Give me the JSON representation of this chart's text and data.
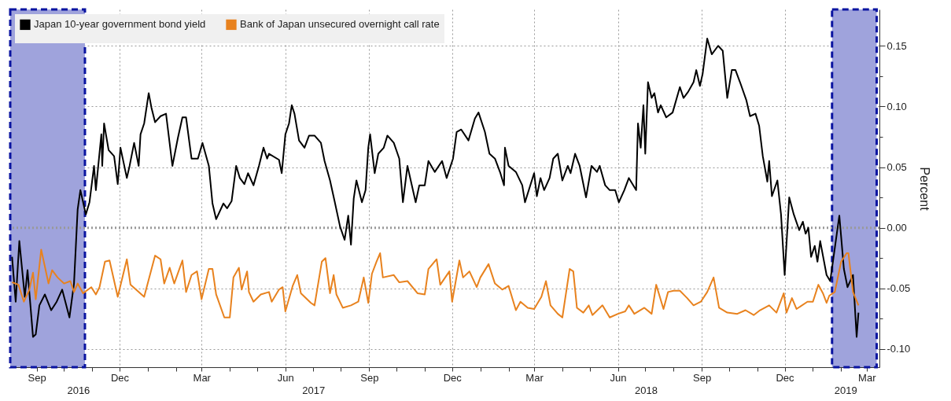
{
  "chart_data": {
    "type": "line",
    "ylabel": "Percent",
    "xlim": [
      "2016-08-03",
      "2019-03-15"
    ],
    "ylim": [
      -0.115,
      0.18
    ],
    "yticks": [
      {
        "value": -0.1,
        "label": "-0.10"
      },
      {
        "value": -0.075,
        "label": null
      },
      {
        "value": -0.05,
        "label": "-0.05"
      },
      {
        "value": -0.025,
        "label": null
      },
      {
        "value": 0,
        "label": "0.00"
      },
      {
        "value": 0.025,
        "label": null
      },
      {
        "value": 0.05,
        "label": "0.05"
      },
      {
        "value": 0.075,
        "label": null
      },
      {
        "value": 0.1,
        "label": "0.10"
      },
      {
        "value": 0.125,
        "label": null
      },
      {
        "value": 0.15,
        "label": "0.15"
      }
    ],
    "xticks": [
      {
        "value": "2016-09-01",
        "label": "Sep"
      },
      {
        "value": "2016-10-01",
        "label": null
      },
      {
        "value": "2016-11-01",
        "label": null
      },
      {
        "value": "2016-12-01",
        "label": "Dec"
      },
      {
        "value": "2017-01-01",
        "label": null
      },
      {
        "value": "2017-02-01",
        "label": null
      },
      {
        "value": "2017-03-01",
        "label": "Mar"
      },
      {
        "value": "2017-04-01",
        "label": null
      },
      {
        "value": "2017-05-01",
        "label": null
      },
      {
        "value": "2017-06-01",
        "label": "Jun"
      },
      {
        "value": "2017-07-01",
        "label": null
      },
      {
        "value": "2017-08-01",
        "label": null
      },
      {
        "value": "2017-09-01",
        "label": "Sep"
      },
      {
        "value": "2017-10-01",
        "label": null
      },
      {
        "value": "2017-11-01",
        "label": null
      },
      {
        "value": "2017-12-01",
        "label": "Dec"
      },
      {
        "value": "2018-01-01",
        "label": null
      },
      {
        "value": "2018-02-01",
        "label": null
      },
      {
        "value": "2018-03-01",
        "label": "Mar"
      },
      {
        "value": "2018-04-01",
        "label": null
      },
      {
        "value": "2018-05-01",
        "label": null
      },
      {
        "value": "2018-06-01",
        "label": "Jun"
      },
      {
        "value": "2018-07-01",
        "label": null
      },
      {
        "value": "2018-08-01",
        "label": null
      },
      {
        "value": "2018-09-01",
        "label": "Sep"
      },
      {
        "value": "2018-10-01",
        "label": null
      },
      {
        "value": "2018-11-01",
        "label": null
      },
      {
        "value": "2018-12-01",
        "label": "Dec"
      },
      {
        "value": "2019-01-01",
        "label": null
      },
      {
        "value": "2019-02-01",
        "label": null
      },
      {
        "value": "2019-03-01",
        "label": "Mar"
      }
    ],
    "annotations": [
      "2016",
      "2017",
      "2018",
      "2019"
    ],
    "grid": true,
    "legend": "top left",
    "ref_lines": [
      {
        "axis": "y",
        "value": 0,
        "color": "#999999",
        "line_style": "dotted"
      }
    ],
    "bands": [
      {
        "axis": "x",
        "from": "2016-08-03",
        "to": "2016-10-24",
        "color": "#9fa3dc"
      },
      {
        "axis": "x",
        "from": "2019-01-22",
        "to": "2019-03-12",
        "color": "#9fa3dc"
      }
    ],
    "series": [
      {
        "name": "Japan 10-year government bond yield",
        "color": "#000000",
        "x": [
          "2016-08-05",
          "2016-08-09",
          "2016-08-13",
          "2016-08-19",
          "2016-08-22",
          "2016-08-28",
          "2016-08-31",
          "2016-09-04",
          "2016-09-10",
          "2016-09-17",
          "2016-09-23",
          "2016-09-29",
          "2016-10-07",
          "2016-10-12",
          "2016-10-16",
          "2016-10-19",
          "2016-10-25",
          "2016-10-29",
          "2016-11-03",
          "2016-11-05",
          "2016-11-11",
          "2016-11-12",
          "2016-11-14",
          "2016-11-19",
          "2016-11-25",
          "2016-11-29",
          "2016-12-02",
          "2016-12-09",
          "2016-12-12",
          "2016-12-17",
          "2016-12-22",
          "2016-12-24",
          "2016-12-28",
          "2017-01-02",
          "2017-01-05",
          "2017-01-09",
          "2017-01-15",
          "2017-01-21",
          "2017-01-28",
          "2017-02-03",
          "2017-02-08",
          "2017-02-12",
          "2017-02-18",
          "2017-02-25",
          "2017-03-02",
          "2017-03-09",
          "2017-03-13",
          "2017-03-17",
          "2017-03-25",
          "2017-03-29",
          "2017-04-03",
          "2017-04-08",
          "2017-04-12",
          "2017-04-17",
          "2017-04-21",
          "2017-04-27",
          "2017-05-03",
          "2017-05-08",
          "2017-05-12",
          "2017-05-14",
          "2017-05-25",
          "2017-05-28",
          "2017-06-01",
          "2017-06-05",
          "2017-06-08",
          "2017-06-11",
          "2017-06-16",
          "2017-06-22",
          "2017-06-27",
          "2017-07-03",
          "2017-07-10",
          "2017-07-14",
          "2017-07-20",
          "2017-07-25",
          "2017-07-31",
          "2017-08-05",
          "2017-08-09",
          "2017-08-12",
          "2017-08-15",
          "2017-08-18",
          "2017-08-24",
          "2017-08-28",
          "2017-08-31",
          "2017-09-02",
          "2017-09-07",
          "2017-09-11",
          "2017-09-17",
          "2017-09-21",
          "2017-09-28",
          "2017-10-04",
          "2017-10-08",
          "2017-10-13",
          "2017-10-22",
          "2017-10-26",
          "2017-11-01",
          "2017-11-05",
          "2017-11-12",
          "2017-11-20",
          "2017-11-25",
          "2017-12-02",
          "2017-12-06",
          "2017-12-11",
          "2017-12-19",
          "2017-12-26",
          "2017-12-30",
          "2018-01-06",
          "2018-01-11",
          "2018-01-17",
          "2018-01-23",
          "2018-01-27",
          "2018-01-28",
          "2018-02-01",
          "2018-02-09",
          "2018-02-16",
          "2018-02-19",
          "2018-03-01",
          "2018-03-04",
          "2018-03-08",
          "2018-03-12",
          "2018-03-18",
          "2018-03-22",
          "2018-03-27",
          "2018-04-01",
          "2018-04-07",
          "2018-04-10",
          "2018-04-15",
          "2018-04-20",
          "2018-04-27",
          "2018-05-03",
          "2018-05-09",
          "2018-05-12",
          "2018-05-18",
          "2018-05-23",
          "2018-05-29",
          "2018-06-02",
          "2018-06-08",
          "2018-06-13",
          "2018-06-21",
          "2018-06-23",
          "2018-06-26",
          "2018-06-29",
          "2018-07-01",
          "2018-07-04",
          "2018-07-08",
          "2018-07-11",
          "2018-07-15",
          "2018-07-18",
          "2018-07-24",
          "2018-07-31",
          "2018-08-08",
          "2018-08-12",
          "2018-08-17",
          "2018-08-23",
          "2018-08-26",
          "2018-08-30",
          "2018-09-02",
          "2018-09-07",
          "2018-09-12",
          "2018-09-19",
          "2018-09-24",
          "2018-09-29",
          "2018-10-04",
          "2018-10-08",
          "2018-10-13",
          "2018-10-20",
          "2018-10-24",
          "2018-10-30",
          "2018-11-03",
          "2018-11-07",
          "2018-11-12",
          "2018-11-14",
          "2018-11-17",
          "2018-11-23",
          "2018-11-27",
          "2018-12-01",
          "2018-12-06",
          "2018-12-11",
          "2018-12-17",
          "2018-12-21",
          "2018-12-24",
          "2018-12-27",
          "2018-12-30",
          "2019-01-03",
          "2019-01-06",
          "2019-01-09",
          "2019-01-16",
          "2019-01-20",
          "2019-01-30",
          "2019-02-04",
          "2019-02-08",
          "2019-02-14",
          "2019-02-18",
          "2019-02-20"
        ],
        "values": [
          -0.024,
          -0.061,
          -0.011,
          -0.057,
          -0.035,
          -0.09,
          -0.088,
          -0.064,
          -0.055,
          -0.068,
          -0.061,
          -0.051,
          -0.074,
          -0.046,
          0.015,
          0.031,
          0.011,
          0.021,
          0.051,
          0.031,
          0.077,
          0.051,
          0.086,
          0.064,
          0.059,
          0.036,
          0.066,
          0.041,
          0.051,
          0.07,
          0.051,
          0.077,
          0.086,
          0.111,
          0.099,
          0.087,
          0.092,
          0.094,
          0.051,
          0.074,
          0.091,
          0.091,
          0.057,
          0.057,
          0.07,
          0.051,
          0.02,
          0.007,
          0.02,
          0.016,
          0.022,
          0.051,
          0.041,
          0.036,
          0.045,
          0.035,
          0.051,
          0.066,
          0.057,
          0.061,
          0.056,
          0.045,
          0.077,
          0.086,
          0.101,
          0.094,
          0.072,
          0.066,
          0.076,
          0.076,
          0.07,
          0.055,
          0.039,
          0.022,
          0.001,
          -0.01,
          0.01,
          -0.014,
          0.024,
          0.039,
          0.021,
          0.031,
          0.066,
          0.077,
          0.045,
          0.061,
          0.066,
          0.076,
          0.07,
          0.057,
          0.021,
          0.051,
          0.021,
          0.035,
          0.035,
          0.055,
          0.046,
          0.055,
          0.041,
          0.057,
          0.079,
          0.081,
          0.072,
          0.09,
          0.095,
          0.079,
          0.061,
          0.057,
          0.045,
          0.035,
          0.066,
          0.051,
          0.046,
          0.035,
          0.021,
          0.045,
          0.026,
          0.041,
          0.031,
          0.041,
          0.057,
          0.061,
          0.039,
          0.051,
          0.045,
          0.061,
          0.051,
          0.025,
          0.051,
          0.046,
          0.051,
          0.035,
          0.031,
          0.031,
          0.021,
          0.031,
          0.041,
          0.031,
          0.086,
          0.066,
          0.101,
          0.061,
          0.12,
          0.107,
          0.111,
          0.095,
          0.101,
          0.091,
          0.095,
          0.116,
          0.107,
          0.112,
          0.12,
          0.13,
          0.117,
          0.127,
          0.156,
          0.143,
          0.15,
          0.146,
          0.107,
          0.13,
          0.13,
          0.12,
          0.105,
          0.092,
          0.094,
          0.084,
          0.059,
          0.038,
          0.055,
          0.026,
          0.039,
          0.011,
          -0.039,
          0.025,
          0.011,
          -0.002,
          0.005,
          -0.005,
          0,
          -0.024,
          -0.015,
          -0.028,
          -0.011,
          -0.039,
          -0.044,
          0.01,
          -0.034,
          -0.049,
          -0.039,
          -0.09,
          -0.07
        ]
      },
      {
        "name": "Bank of Japan unsecured overnight call rate",
        "color": "#e8821e",
        "x": [
          "2016-08-05",
          "2016-08-12",
          "2016-08-18",
          "2016-08-24",
          "2016-08-28",
          "2016-08-31",
          "2016-09-06",
          "2016-09-14",
          "2016-09-18",
          "2016-09-24",
          "2016-10-01",
          "2016-10-08",
          "2016-10-12",
          "2016-10-16",
          "2016-10-22",
          "2016-10-31",
          "2016-11-05",
          "2016-11-09",
          "2016-11-15",
          "2016-11-20",
          "2016-11-29",
          "2016-12-09",
          "2016-12-13",
          "2016-12-28",
          "2017-01-09",
          "2017-01-15",
          "2017-01-19",
          "2017-01-25",
          "2017-01-30",
          "2017-02-08",
          "2017-02-12",
          "2017-02-18",
          "2017-02-24",
          "2017-03-01",
          "2017-03-09",
          "2017-03-13",
          "2017-03-17",
          "2017-03-26",
          "2017-04-01",
          "2017-04-05",
          "2017-04-11",
          "2017-04-14",
          "2017-04-20",
          "2017-04-22",
          "2017-04-27",
          "2017-05-05",
          "2017-05-14",
          "2017-05-17",
          "2017-05-25",
          "2017-05-29",
          "2017-06-01",
          "2017-06-09",
          "2017-06-14",
          "2017-06-18",
          "2017-06-29",
          "2017-07-03",
          "2017-07-11",
          "2017-07-15",
          "2017-07-20",
          "2017-07-24",
          "2017-07-27",
          "2017-08-03",
          "2017-08-12",
          "2017-08-20",
          "2017-08-26",
          "2017-08-31",
          "2017-09-04",
          "2017-09-09",
          "2017-09-13",
          "2017-09-16",
          "2017-09-28",
          "2017-10-04",
          "2017-10-13",
          "2017-10-24",
          "2017-11-01",
          "2017-11-05",
          "2017-11-14",
          "2017-11-18",
          "2017-11-28",
          "2017-12-01",
          "2017-12-09",
          "2017-12-13",
          "2017-12-20",
          "2017-12-28",
          "2018-01-01",
          "2018-01-10",
          "2018-01-17",
          "2018-01-25",
          "2018-02-01",
          "2018-02-09",
          "2018-02-14",
          "2018-02-22",
          "2018-03-01",
          "2018-03-09",
          "2018-03-14",
          "2018-03-19",
          "2018-03-27",
          "2018-04-01",
          "2018-04-09",
          "2018-04-13",
          "2018-04-17",
          "2018-04-24",
          "2018-04-30",
          "2018-05-04",
          "2018-05-15",
          "2018-05-23",
          "2018-06-01",
          "2018-06-09",
          "2018-06-13",
          "2018-06-19",
          "2018-06-30",
          "2018-07-08",
          "2018-07-13",
          "2018-07-21",
          "2018-07-26",
          "2018-08-01",
          "2018-08-08",
          "2018-08-16",
          "2018-08-23",
          "2018-08-31",
          "2018-09-07",
          "2018-09-14",
          "2018-09-20",
          "2018-09-29",
          "2018-10-10",
          "2018-10-19",
          "2018-10-28",
          "2018-11-04",
          "2018-11-14",
          "2018-11-22",
          "2018-11-30",
          "2018-12-03",
          "2018-12-09",
          "2018-12-14",
          "2018-12-26",
          "2019-01-01",
          "2019-01-07",
          "2019-01-12",
          "2019-01-16",
          "2019-01-19",
          "2019-01-25",
          "2019-02-01",
          "2019-02-07",
          "2019-02-09",
          "2019-02-14",
          "2019-02-20"
        ],
        "values": [
          -0.045,
          -0.047,
          -0.061,
          -0.051,
          -0.037,
          -0.059,
          -0.018,
          -0.046,
          -0.035,
          -0.041,
          -0.046,
          -0.044,
          -0.053,
          -0.046,
          -0.054,
          -0.049,
          -0.055,
          -0.049,
          -0.028,
          -0.027,
          -0.057,
          -0.026,
          -0.047,
          -0.057,
          -0.023,
          -0.026,
          -0.046,
          -0.033,
          -0.046,
          -0.027,
          -0.053,
          -0.039,
          -0.036,
          -0.059,
          -0.034,
          -0.034,
          -0.055,
          -0.074,
          -0.074,
          -0.041,
          -0.033,
          -0.051,
          -0.036,
          -0.053,
          -0.061,
          -0.055,
          -0.053,
          -0.061,
          -0.051,
          -0.049,
          -0.069,
          -0.048,
          -0.039,
          -0.054,
          -0.062,
          -0.064,
          -0.028,
          -0.025,
          -0.054,
          -0.039,
          -0.055,
          -0.066,
          -0.064,
          -0.061,
          -0.041,
          -0.062,
          -0.038,
          -0.028,
          -0.021,
          -0.041,
          -0.039,
          -0.045,
          -0.044,
          -0.054,
          -0.055,
          -0.034,
          -0.026,
          -0.047,
          -0.036,
          -0.061,
          -0.027,
          -0.041,
          -0.036,
          -0.049,
          -0.041,
          -0.03,
          -0.046,
          -0.051,
          -0.048,
          -0.068,
          -0.061,
          -0.066,
          -0.067,
          -0.057,
          -0.044,
          -0.064,
          -0.071,
          -0.074,
          -0.034,
          -0.036,
          -0.066,
          -0.07,
          -0.064,
          -0.072,
          -0.064,
          -0.074,
          -0.071,
          -0.069,
          -0.064,
          -0.071,
          -0.066,
          -0.071,
          -0.047,
          -0.067,
          -0.053,
          -0.052,
          -0.052,
          -0.058,
          -0.064,
          -0.061,
          -0.053,
          -0.041,
          -0.066,
          -0.07,
          -0.071,
          -0.068,
          -0.072,
          -0.068,
          -0.064,
          -0.07,
          -0.054,
          -0.07,
          -0.058,
          -0.067,
          -0.061,
          -0.061,
          -0.047,
          -0.054,
          -0.062,
          -0.056,
          -0.053,
          -0.028,
          -0.021,
          -0.021,
          -0.053,
          -0.064
        ]
      }
    ]
  }
}
